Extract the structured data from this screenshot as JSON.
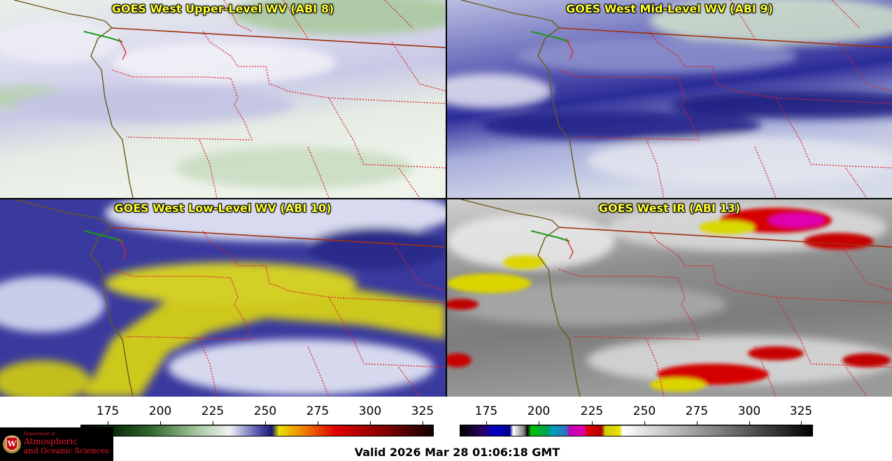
{
  "panels": [
    {
      "id": "upper",
      "title": "GOES West Upper-Level WV (ABI 8)"
    },
    {
      "id": "mid",
      "title": "GOES West Mid-Level WV (ABI 9)"
    },
    {
      "id": "low",
      "title": "GOES West Low-Level WV (ABI 10)"
    },
    {
      "id": "ir",
      "title": "GOES West IR (ABI 13)"
    }
  ],
  "colorbars": {
    "left_ticks": [
      "175",
      "200",
      "225",
      "250",
      "275",
      "300",
      "325"
    ],
    "right_ticks": [
      "175",
      "200",
      "225",
      "250",
      "275",
      "300",
      "325"
    ]
  },
  "logo": {
    "line1": "Department of",
    "line2": "Atmospheric",
    "line3": "and Oceanic Sciences",
    "seal_letter": "W"
  },
  "footer": {
    "valid_text": "Valid 2026 Mar 28 01:06:18 GMT"
  },
  "colors": {
    "title": "#ffff33",
    "border_state": "#e0202a",
    "border_intl": "#a03010",
    "coast": "#6b5a1a"
  }
}
